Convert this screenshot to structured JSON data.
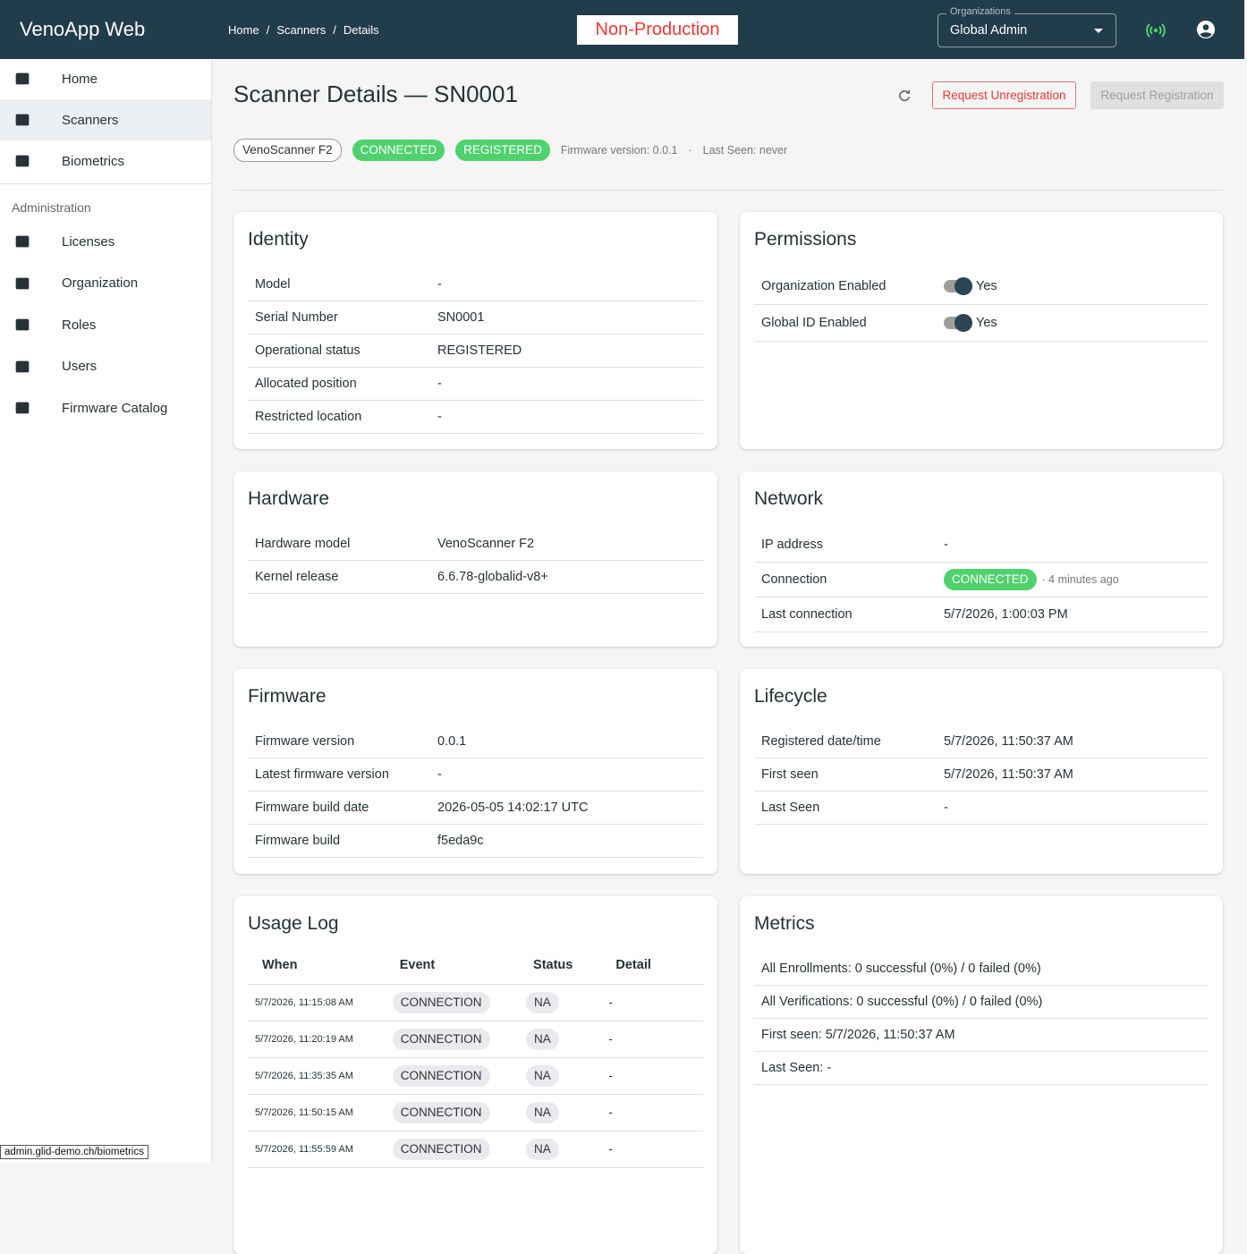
{
  "header": {
    "app_title": "VenoApp Web",
    "breadcrumbs": [
      "Home",
      "Scanners",
      "Details"
    ],
    "env_badge": "Non-Production",
    "org_label": "Organizations",
    "org_value": "Global Admin"
  },
  "sidebar": {
    "nav": [
      "Home",
      "Scanners",
      "Biometrics"
    ],
    "section_title": "Administration",
    "admin_nav": [
      "Licenses",
      "Organization",
      "Roles",
      "Users",
      "Firmware Catalog"
    ]
  },
  "page": {
    "title": "Scanner Details — SN0001",
    "actions": [
      "Request Unregistration",
      "Request Registration"
    ],
    "chips": [
      "VenoScanner F2",
      "CONNECTED",
      "REGISTERED"
    ],
    "meta": [
      "Firmware version: 0.0.1",
      "·",
      "Last Seen: never"
    ]
  },
  "identity": {
    "title": "Identity",
    "rows": [
      [
        "Model",
        "-"
      ],
      [
        "Serial Number",
        "SN0001"
      ],
      [
        "Operational status",
        "REGISTERED"
      ],
      [
        "Allocated position",
        "-"
      ],
      [
        "Restricted location",
        "-"
      ]
    ]
  },
  "permissions": {
    "title": "Permissions",
    "rows": [
      [
        "Organization Enabled",
        "Yes"
      ],
      [
        "Global ID Enabled",
        "Yes"
      ]
    ]
  },
  "hardware": {
    "title": "Hardware",
    "rows": [
      [
        "Hardware model",
        "VenoScanner F2"
      ],
      [
        "Kernel release",
        "6.6.78-globalid-v8+"
      ]
    ]
  },
  "network": {
    "title": "Network",
    "rows": [
      [
        "IP address",
        "-"
      ],
      [
        "Connection",
        "CONNECTED",
        "· 4 minutes ago"
      ],
      [
        "Last connection",
        "5/7/2026, 1:00:03 PM"
      ]
    ]
  },
  "firmware": {
    "title": "Firmware",
    "rows": [
      [
        "Firmware version",
        "0.0.1"
      ],
      [
        "Latest firmware version",
        "-"
      ],
      [
        "Firmware build date",
        "2026-05-05 14:02:17 UTC"
      ],
      [
        "Firmware build",
        "f5eda9c"
      ]
    ]
  },
  "lifecycle": {
    "title": "Lifecycle",
    "rows": [
      [
        "Registered date/time",
        "5/7/2026, 11:50:37 AM"
      ],
      [
        "First seen",
        "5/7/2026, 11:50:37 AM"
      ],
      [
        "Last Seen",
        "-"
      ]
    ]
  },
  "usage_log": {
    "title": "Usage Log",
    "columns": [
      "When",
      "Event",
      "Status",
      "Detail"
    ],
    "rows": [
      [
        "5/7/2026, 11:15:08 AM",
        "CONNECTION",
        "NA",
        "-"
      ],
      [
        "5/7/2026, 11:20:19 AM",
        "CONNECTION",
        "NA",
        "-"
      ],
      [
        "5/7/2026, 11:35:35 AM",
        "CONNECTION",
        "NA",
        "-"
      ],
      [
        "5/7/2026, 11:50:15 AM",
        "CONNECTION",
        "NA",
        "-"
      ],
      [
        "5/7/2026, 11:55:59 AM",
        "CONNECTION",
        "NA",
        "-"
      ]
    ]
  },
  "metrics": {
    "title": "Metrics",
    "items": [
      "All Enrollments: 0 successful (0%) / 0 failed (0%)",
      "All Verifications: 0 successful (0%) / 0 failed (0%)",
      "First seen: 5/7/2026, 11:50:37 AM",
      "Last Seen: -"
    ]
  },
  "status_bar": "admin.glid-demo.ch/biometrics"
}
